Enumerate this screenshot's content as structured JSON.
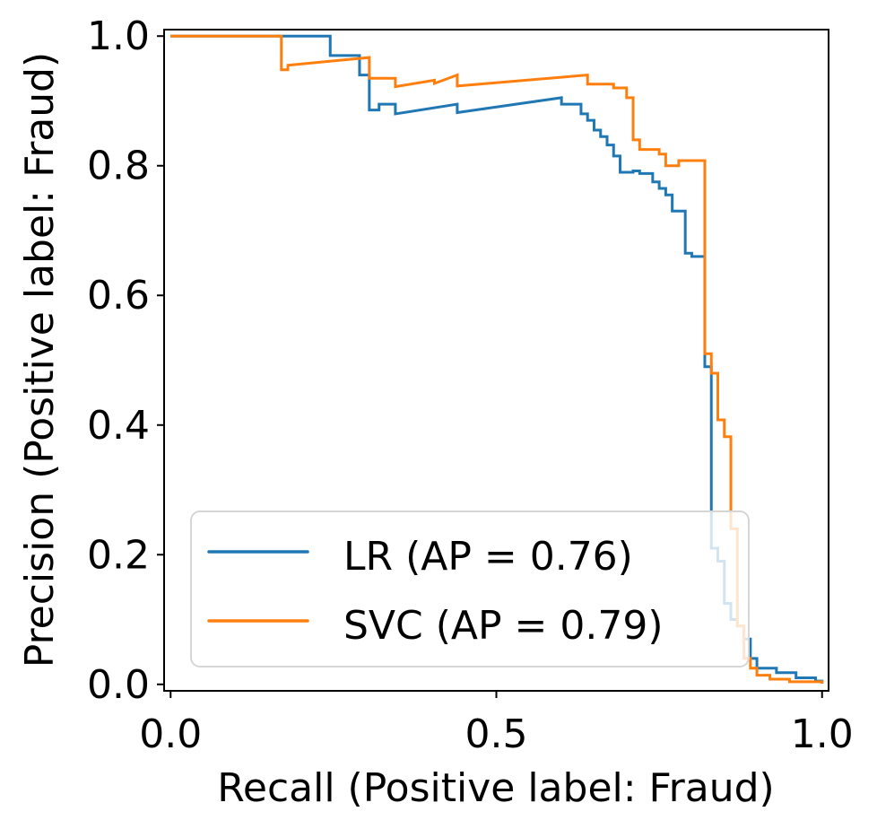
{
  "chart_data": {
    "type": "line",
    "xlabel": "Recall (Positive label: Fraud)",
    "ylabel": "Precision (Positive label: Fraud)",
    "xlim": [
      -0.01,
      1.01
    ],
    "ylim": [
      -0.01,
      1.01
    ],
    "x_ticks": [
      0.0,
      0.5,
      1.0
    ],
    "x_tick_labels": [
      "0.0",
      "0.5",
      "1.0"
    ],
    "y_ticks": [
      0.0,
      0.2,
      0.4,
      0.6,
      0.8,
      1.0
    ],
    "y_tick_labels": [
      "0.0",
      "0.2",
      "0.4",
      "0.6",
      "0.8",
      "1.0"
    ],
    "grid": false,
    "legend_position": "lower-left",
    "series": [
      {
        "name": "LR (AP = 0.76)",
        "color": "#1f77b4",
        "points": [
          [
            0.0,
            1.0
          ],
          [
            0.245,
            1.0
          ],
          [
            0.245,
            0.99
          ],
          [
            0.245,
            0.97
          ],
          [
            0.29,
            0.97
          ],
          [
            0.29,
            0.94
          ],
          [
            0.305,
            0.94
          ],
          [
            0.305,
            0.886
          ],
          [
            0.32,
            0.886
          ],
          [
            0.32,
            0.895
          ],
          [
            0.345,
            0.895
          ],
          [
            0.345,
            0.88
          ],
          [
            0.44,
            0.895
          ],
          [
            0.44,
            0.882
          ],
          [
            0.6,
            0.905
          ],
          [
            0.6,
            0.895
          ],
          [
            0.63,
            0.895
          ],
          [
            0.63,
            0.88
          ],
          [
            0.64,
            0.88
          ],
          [
            0.64,
            0.87
          ],
          [
            0.65,
            0.87
          ],
          [
            0.65,
            0.855
          ],
          [
            0.66,
            0.855
          ],
          [
            0.66,
            0.845
          ],
          [
            0.67,
            0.845
          ],
          [
            0.67,
            0.832
          ],
          [
            0.68,
            0.832
          ],
          [
            0.68,
            0.815
          ],
          [
            0.69,
            0.815
          ],
          [
            0.69,
            0.79
          ],
          [
            0.71,
            0.79
          ],
          [
            0.71,
            0.792
          ],
          [
            0.72,
            0.792
          ],
          [
            0.72,
            0.788
          ],
          [
            0.74,
            0.788
          ],
          [
            0.74,
            0.775
          ],
          [
            0.75,
            0.775
          ],
          [
            0.75,
            0.765
          ],
          [
            0.76,
            0.765
          ],
          [
            0.76,
            0.755
          ],
          [
            0.77,
            0.755
          ],
          [
            0.77,
            0.73
          ],
          [
            0.79,
            0.73
          ],
          [
            0.79,
            0.665
          ],
          [
            0.8,
            0.665
          ],
          [
            0.8,
            0.66
          ],
          [
            0.82,
            0.66
          ],
          [
            0.82,
            0.49
          ],
          [
            0.83,
            0.49
          ],
          [
            0.83,
            0.28
          ],
          [
            0.83,
            0.21
          ],
          [
            0.84,
            0.21
          ],
          [
            0.84,
            0.19
          ],
          [
            0.85,
            0.19
          ],
          [
            0.85,
            0.125
          ],
          [
            0.86,
            0.125
          ],
          [
            0.86,
            0.1
          ],
          [
            0.87,
            0.1
          ],
          [
            0.87,
            0.09
          ],
          [
            0.88,
            0.09
          ],
          [
            0.88,
            0.07
          ],
          [
            0.89,
            0.07
          ],
          [
            0.89,
            0.04
          ],
          [
            0.9,
            0.04
          ],
          [
            0.9,
            0.025
          ],
          [
            0.93,
            0.025
          ],
          [
            0.93,
            0.018
          ],
          [
            0.96,
            0.018
          ],
          [
            0.96,
            0.01
          ],
          [
            0.99,
            0.01
          ],
          [
            0.99,
            0.005
          ],
          [
            1.0,
            0.005
          ],
          [
            1.0,
            0.001
          ]
        ]
      },
      {
        "name": "SVC (AP = 0.79)",
        "color": "#ff7f0e",
        "points": [
          [
            0.0,
            1.0
          ],
          [
            0.17,
            1.0
          ],
          [
            0.17,
            0.948
          ],
          [
            0.18,
            0.948
          ],
          [
            0.18,
            0.955
          ],
          [
            0.305,
            0.967
          ],
          [
            0.305,
            0.935
          ],
          [
            0.345,
            0.935
          ],
          [
            0.345,
            0.922
          ],
          [
            0.405,
            0.932
          ],
          [
            0.405,
            0.927
          ],
          [
            0.44,
            0.94
          ],
          [
            0.44,
            0.923
          ],
          [
            0.64,
            0.94
          ],
          [
            0.64,
            0.926
          ],
          [
            0.68,
            0.926
          ],
          [
            0.68,
            0.92
          ],
          [
            0.7,
            0.92
          ],
          [
            0.7,
            0.905
          ],
          [
            0.71,
            0.905
          ],
          [
            0.71,
            0.84
          ],
          [
            0.72,
            0.84
          ],
          [
            0.72,
            0.825
          ],
          [
            0.75,
            0.825
          ],
          [
            0.75,
            0.818
          ],
          [
            0.76,
            0.818
          ],
          [
            0.76,
            0.8
          ],
          [
            0.78,
            0.8
          ],
          [
            0.78,
            0.808
          ],
          [
            0.82,
            0.808
          ],
          [
            0.82,
            0.51
          ],
          [
            0.83,
            0.51
          ],
          [
            0.83,
            0.48
          ],
          [
            0.84,
            0.48
          ],
          [
            0.84,
            0.408
          ],
          [
            0.85,
            0.408
          ],
          [
            0.85,
            0.382
          ],
          [
            0.86,
            0.382
          ],
          [
            0.86,
            0.3
          ],
          [
            0.86,
            0.24
          ],
          [
            0.87,
            0.24
          ],
          [
            0.87,
            0.09
          ],
          [
            0.88,
            0.09
          ],
          [
            0.88,
            0.04
          ],
          [
            0.89,
            0.04
          ],
          [
            0.89,
            0.025
          ],
          [
            0.9,
            0.025
          ],
          [
            0.9,
            0.014
          ],
          [
            0.92,
            0.014
          ],
          [
            0.92,
            0.008
          ],
          [
            0.95,
            0.008
          ],
          [
            0.95,
            0.004
          ],
          [
            1.0,
            0.004
          ],
          [
            1.0,
            0.001
          ]
        ]
      }
    ]
  }
}
